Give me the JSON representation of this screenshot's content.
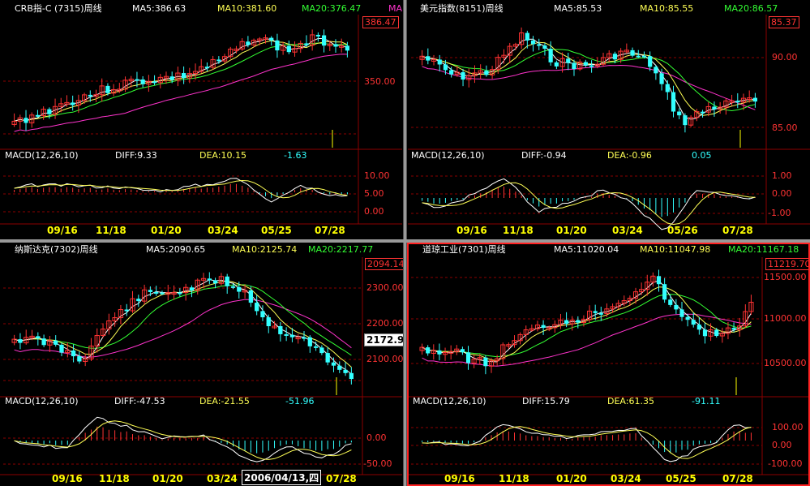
{
  "colors": {
    "up": "#ff3333",
    "down": "#33ffff",
    "ma5": "#ffffff",
    "ma10": "#ffff55",
    "ma20": "#33ff33",
    "ma60": "#ff33cc",
    "grid": "#8b0000",
    "border": "#ff2222"
  },
  "panels": [
    {
      "title": "CRB指-C (7315)周线",
      "ma5": "MA5:386.63",
      "ma10": "MA10:381.60",
      "ma20": "MA20:376.47",
      "ma_extra": "MA",
      "last_price": "386.47",
      "y_labels": [
        "350.00"
      ],
      "macd_title": "MACD(12,26,10)",
      "diff": "DIFF:9.33",
      "dea": "DEA:10.15",
      "hist": "-1.63",
      "macd_labels": [
        "10.00",
        "5.00",
        "0.00"
      ],
      "x_labels": [
        "09/16",
        "11/18",
        "01/20",
        "03/24",
        "05/25",
        "07/28"
      ]
    },
    {
      "title": "美元指数(8151)周线",
      "ma5": "MA5:85.53",
      "ma10": "MA10:85.55",
      "ma20": "MA20:86.57",
      "ma_extra": "",
      "last_price": "85.37",
      "y_labels": [
        "90.00",
        "85.00"
      ],
      "macd_title": "MACD(12,26,10)",
      "diff": "DIFF:-0.94",
      "dea": "DEA:-0.96",
      "hist": "0.05",
      "macd_labels": [
        "1.00",
        "0.00",
        "-1.00"
      ],
      "x_labels": [
        "09/16",
        "11/18",
        "01/20",
        "03/24",
        "05/26",
        "07/28"
      ]
    },
    {
      "title": "纳斯达克(7302)周线",
      "ma5": "MA5:2090.65",
      "ma10": "MA10:2125.74",
      "ma20": "MA20:2217.77",
      "ma_extra": "",
      "last_price": "2094.14",
      "cursor_price": "2172.9",
      "y_labels": [
        "2300.00",
        "2200.00",
        "2100.00"
      ],
      "macd_title": "MACD(12,26,10)",
      "diff": "DIFF:-47.53",
      "dea": "DEA:-21.55",
      "hist": "-51.96",
      "macd_labels": [
        "0.00",
        "-50.00"
      ],
      "x_labels": [
        "09/16",
        "11/18",
        "01/20",
        "03/24",
        "",
        "07/28"
      ],
      "cursor_date": "2006/04/13,四"
    },
    {
      "title": "道琼工业(7301)周线",
      "ma5": "MA5:11020.04",
      "ma10": "MA10:11047.98",
      "ma20": "MA20:11167.18",
      "ma_extra": "",
      "last_price": "11219.70",
      "y_labels": [
        "11500.00",
        "11000.00",
        "10500.00"
      ],
      "macd_title": "MACD(12,26,10)",
      "diff": "DIFF:15.79",
      "dea": "DEA:61.35",
      "hist": "-91.11",
      "macd_labels": [
        "100.00",
        "0.00",
        "-100.00"
      ],
      "x_labels": [
        "09/16",
        "11/18",
        "01/20",
        "03/24",
        "05/25",
        "07/28"
      ]
    }
  ]
}
